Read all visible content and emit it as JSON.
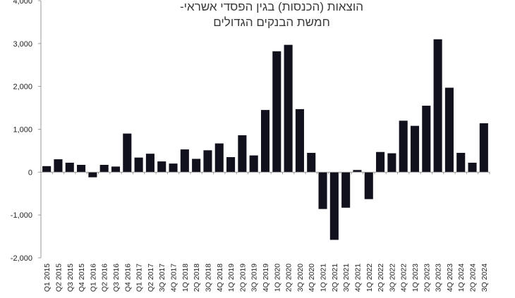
{
  "chart_data": {
    "type": "bar",
    "title_lines": [
      "הוצאות (הכנסות) בגין הפסדי אשראי-",
      "חמשת הבנקים הגדולים"
    ],
    "xlabel": "",
    "ylabel": "",
    "ylim": [
      -2000,
      4000
    ],
    "y_ticks": [
      4000,
      3000,
      2000,
      1000,
      0,
      -1000,
      -2000
    ],
    "y_tick_labels": [
      "4,000",
      "3,000",
      "2,000",
      "1,000",
      "0",
      "-1,000",
      "-2,000"
    ],
    "grid": false,
    "legend": "none",
    "bar_color": "#11111d",
    "categories": [
      "Q1 2015",
      "Q2 2015",
      "Q3 2015",
      "Q4 2015",
      "Q1 2016",
      "Q2 2016",
      "Q3 2016",
      "Q4 2016",
      "Q1 2017",
      "Q2 2017",
      "3Q 2017",
      "4Q 2017",
      "1Q 2018",
      "2Q 2018",
      "3Q 2018",
      "4Q 2018",
      "1Q 2019",
      "2Q 2019",
      "3Q 2019",
      "4Q 2019",
      "1Q 2020",
      "2Q 2020",
      "3Q 2020",
      "4Q 2020",
      "1Q 2021",
      "2Q 2021",
      "3Q 2021",
      "4Q 2021",
      "1Q 2022",
      "2Q 2022",
      "3Q 2022",
      "4Q 2022",
      "1Q 2023",
      "2Q 2023",
      "3Q 2023",
      "4Q 2023",
      "1Q 2024",
      "2Q 2024",
      "3Q 2024"
    ],
    "values": [
      140,
      300,
      220,
      170,
      -120,
      170,
      130,
      900,
      340,
      430,
      250,
      200,
      530,
      310,
      510,
      670,
      350,
      860,
      390,
      1450,
      2820,
      2970,
      1470,
      450,
      -860,
      -1580,
      -830,
      50,
      -630,
      470,
      440,
      1200,
      1080,
      1550,
      3100,
      1970,
      450,
      220,
      1140
    ]
  }
}
